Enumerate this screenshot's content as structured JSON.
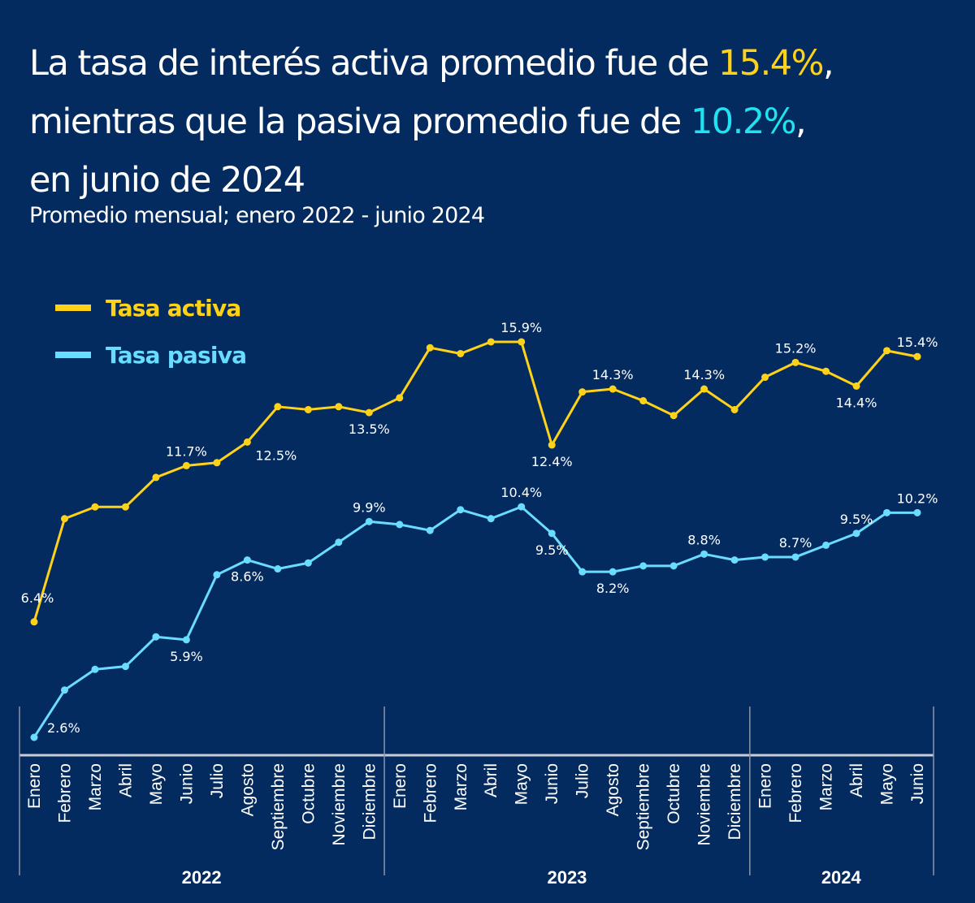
{
  "title": {
    "line1_prefix": "La tasa de interés activa promedio fue de ",
    "line1_value": "15.4%",
    "line1_suffix": ",",
    "line2_prefix": "mientras que la pasiva promedio fue de ",
    "line2_value": "10.2%",
    "line2_suffix": ",",
    "line3": "en junio de 2024"
  },
  "subtitle": "Promedio mensual; enero 2022 - junio 2024",
  "colors": {
    "background": "#042b5f",
    "activa": "#ffd21a",
    "pasiva": "#6adcff",
    "title_pasiva_highlight": "#1fe3ef",
    "axis": "#c8ccd6"
  },
  "chart_data": {
    "type": "line",
    "title": "La tasa de interés activa promedio fue de 15.4%, mientras que la pasiva promedio fue de 10.2%, en junio de 2024",
    "subtitle": "Promedio mensual; enero 2022 - junio 2024",
    "xlabel": "",
    "ylabel": "",
    "grid": false,
    "legend_position": "top-left",
    "years": [
      {
        "label": "2022",
        "months": 12
      },
      {
        "label": "2023",
        "months": 12
      },
      {
        "label": "2024",
        "months": 6
      }
    ],
    "categories": [
      "Enero",
      "Febrero",
      "Marzo",
      "Abril",
      "Mayo",
      "Junio",
      "Julio",
      "Agosto",
      "Septiembre",
      "Octubre",
      "Noviembre",
      "Diciembre",
      "Enero",
      "Febrero",
      "Marzo",
      "Abril",
      "Mayo",
      "Junio",
      "Julio",
      "Agosto",
      "Septiembre",
      "Octubre",
      "Noviembre",
      "Diciembre",
      "Enero",
      "Febrero",
      "Marzo",
      "Abril",
      "Mayo",
      "Junio"
    ],
    "series": [
      {
        "name": "Tasa activa",
        "values": [
          6.4,
          9.9,
          10.3,
          10.3,
          11.3,
          11.7,
          11.8,
          12.5,
          13.7,
          13.6,
          13.7,
          13.5,
          14.0,
          15.7,
          15.5,
          15.9,
          15.9,
          12.4,
          14.2,
          14.3,
          13.9,
          13.4,
          14.3,
          13.6,
          14.7,
          15.2,
          14.9,
          14.4,
          15.6,
          15.4
        ],
        "ylim": [
          6,
          17
        ],
        "labels": [
          {
            "index": 0,
            "text": "6.4%",
            "pos": "above-left"
          },
          {
            "index": 5,
            "text": "11.7%",
            "pos": "above"
          },
          {
            "index": 7,
            "text": "12.5%",
            "pos": "below-right"
          },
          {
            "index": 11,
            "text": "13.5%",
            "pos": "below"
          },
          {
            "index": 16,
            "text": "15.9%",
            "pos": "above"
          },
          {
            "index": 17,
            "text": "12.4%",
            "pos": "below"
          },
          {
            "index": 19,
            "text": "14.3%",
            "pos": "above"
          },
          {
            "index": 22,
            "text": "14.3%",
            "pos": "above"
          },
          {
            "index": 25,
            "text": "15.2%",
            "pos": "above"
          },
          {
            "index": 27,
            "text": "14.4%",
            "pos": "below"
          },
          {
            "index": 29,
            "text": "15.4%",
            "pos": "above"
          }
        ]
      },
      {
        "name": "Tasa pasiva",
        "values": [
          2.6,
          4.2,
          4.9,
          5.0,
          6.0,
          5.9,
          8.1,
          8.6,
          8.3,
          8.5,
          9.2,
          9.9,
          9.8,
          9.6,
          10.3,
          10.0,
          10.4,
          9.5,
          8.2,
          8.2,
          8.4,
          8.4,
          8.8,
          8.6,
          8.7,
          8.7,
          9.1,
          9.5,
          10.2,
          10.2
        ],
        "ylim": [
          1.5,
          15
        ],
        "labels": [
          {
            "index": 0,
            "text": "2.6%",
            "pos": "right"
          },
          {
            "index": 5,
            "text": "5.9%",
            "pos": "below"
          },
          {
            "index": 7,
            "text": "8.6%",
            "pos": "below"
          },
          {
            "index": 11,
            "text": "9.9%",
            "pos": "above"
          },
          {
            "index": 16,
            "text": "10.4%",
            "pos": "above"
          },
          {
            "index": 17,
            "text": "9.5%",
            "pos": "below"
          },
          {
            "index": 19,
            "text": "8.2%",
            "pos": "below"
          },
          {
            "index": 22,
            "text": "8.8%",
            "pos": "above"
          },
          {
            "index": 25,
            "text": "8.7%",
            "pos": "above"
          },
          {
            "index": 27,
            "text": "9.5%",
            "pos": "above"
          },
          {
            "index": 29,
            "text": "10.2%",
            "pos": "above"
          }
        ]
      }
    ]
  }
}
